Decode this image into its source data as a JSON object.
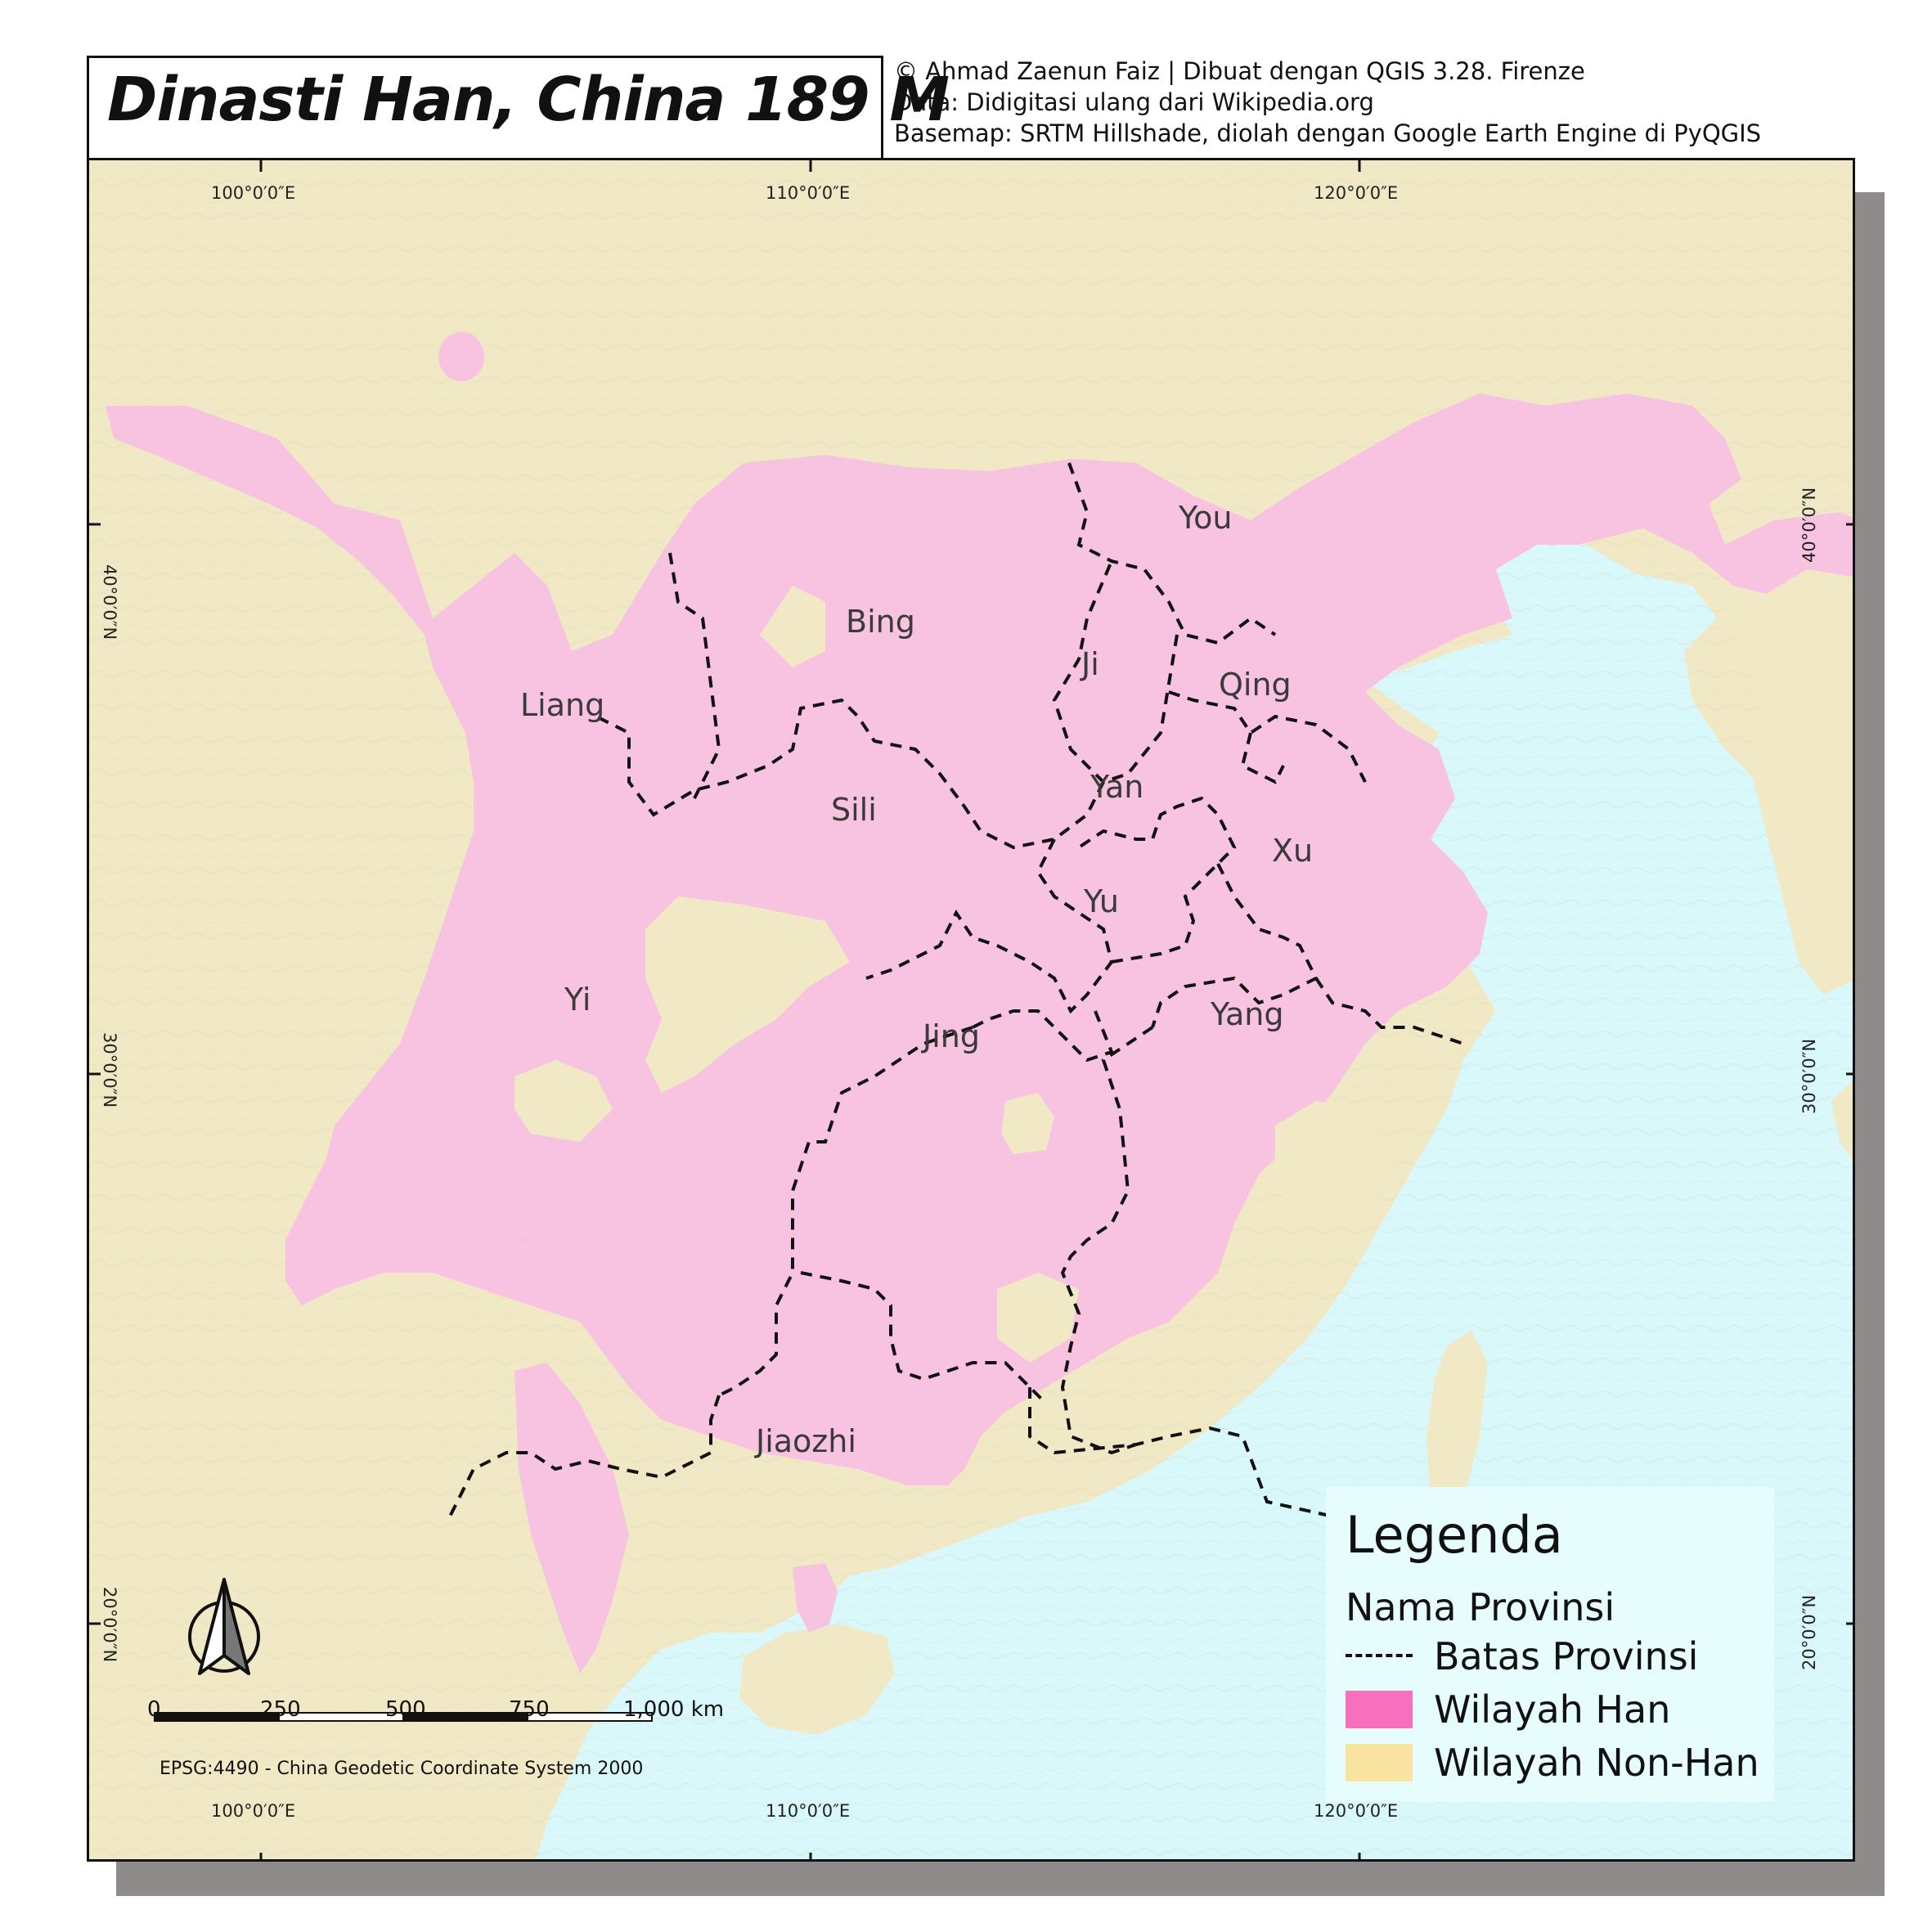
{
  "title": "Dinasti Han, China 189 M",
  "credits": [
    "© Ahmad Zaenun Faiz | Dibuat dengan QGIS 3.28. Firenze",
    "Data: Didigitasi ulang dari Wikipedia.org",
    "Basemap: SRTM Hillshade, diolah dengan Google Earth Engine di PyQGIS"
  ],
  "grid": {
    "top_labels": [
      "100°0′0″E",
      "110°0′0″E",
      "120°0′0″E"
    ],
    "bottom_labels": [
      "100°0′0″E",
      "110°0′0″E",
      "120°0′0″E"
    ],
    "left_labels": [
      "40°0′0″N",
      "30°0′0″N",
      "20°0′0″N"
    ],
    "right_labels": [
      "40°0′0″N",
      "30°0′0″N",
      "20°0′0″N"
    ]
  },
  "provinces": [
    "You",
    "Bing",
    "Ji",
    "Qing",
    "Liang",
    "Yan",
    "Sili",
    "Xu",
    "Yu",
    "Yi",
    "Yang",
    "Jing",
    "Jiaozhi"
  ],
  "legend": {
    "title": "Legenda",
    "name_label": "Nama Provinsi",
    "boundary_label": "Batas Provinsi",
    "han_label": "Wilayah Han",
    "nonhan_label": "Wilayah Non-Han",
    "han_color": "#f86fbb",
    "nonhan_color": "#f9e3a0"
  },
  "scale": {
    "labels": [
      "0",
      "250",
      "500",
      "750",
      "1,000 km"
    ]
  },
  "crs": "EPSG:4490 - China Geodetic Coordinate System 2000",
  "colors": {
    "sea": "#d8f8fb",
    "land": "#f1e9c6",
    "han_region": "#f8c2e1"
  },
  "icons": {
    "north_arrow": "north-arrow-icon"
  }
}
